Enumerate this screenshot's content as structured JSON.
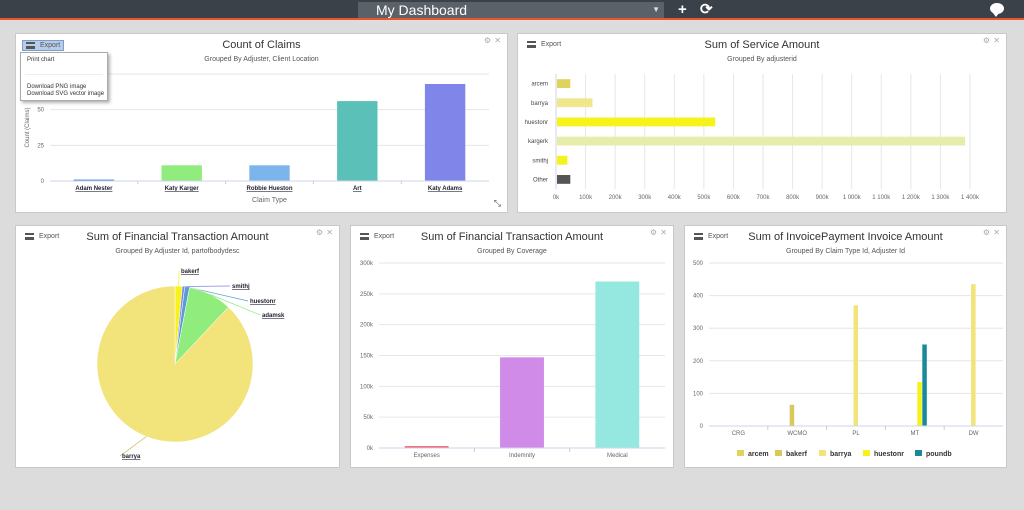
{
  "header": {
    "dashboard_title": "My Dashboard",
    "add_label": "+",
    "refresh_label": "⟳"
  },
  "export_label": "Export",
  "panel_close": "✕",
  "panel_settings": "⚙",
  "export_menu": {
    "print": "Print chart",
    "png": "Download PNG image",
    "svg": "Download SVG vector image"
  },
  "chart_data": [
    {
      "type": "bar",
      "title": "Count of Claims",
      "subtitle": "Grouped By Adjuster, Client Location",
      "xlabel": "Claim Type",
      "ylabel": "Count (Claims)",
      "categories": [
        "Adam Nester",
        "Katy Karger",
        "Robbie Hueston",
        "Art",
        "Katy Adams"
      ],
      "values": [
        1,
        11,
        11,
        56,
        68
      ],
      "colors": [
        "#4e8bd0",
        "#90ed7d",
        "#7cb5ec",
        "#5bc0b8",
        "#8085e9"
      ],
      "yticks": [
        0,
        25,
        50
      ],
      "ylim": [
        0,
        75
      ]
    },
    {
      "type": "bar",
      "orientation": "horizontal",
      "title": "Sum of Service Amount",
      "subtitle": "Grouped By adjusterid",
      "categories": [
        "arcem",
        "barrya",
        "huestonr",
        "kargerk",
        "smithj",
        "Other"
      ],
      "values": [
        45000,
        120000,
        535000,
        1380000,
        35000,
        45000
      ],
      "colors": [
        "#e0d35c",
        "#f0e68c",
        "#f6f21c",
        "#e8ecaa",
        "#f6f21c",
        "#555555"
      ],
      "xticks": [
        "0k",
        "100k",
        "200k",
        "300k",
        "400k",
        "500k",
        "600k",
        "700k",
        "800k",
        "900k",
        "1 000k",
        "1 100k",
        "1 200k",
        "1 300k",
        "1 400k"
      ],
      "xlim": [
        0,
        1400000
      ]
    },
    {
      "type": "pie",
      "title": "Sum of Financial Transaction Amount",
      "subtitle": "Grouped By Adjuster Id, partofbodydesc",
      "slices": [
        {
          "label": "barrya",
          "value": 88,
          "color": "#f2e47a"
        },
        {
          "label": "bakerf",
          "value": 1.5,
          "color": "#f6f21c"
        },
        {
          "label": "smithj",
          "value": 0.5,
          "color": "#8085e9"
        },
        {
          "label": "huestonr",
          "value": 1,
          "color": "#5b9bd5"
        },
        {
          "label": "adamsk",
          "value": 9,
          "color": "#90ed7d"
        }
      ]
    },
    {
      "type": "bar",
      "title": "Sum of Financial Transaction Amount",
      "subtitle": "Grouped By Coverage",
      "categories": [
        "Expenses",
        "Indemnity",
        "Medical"
      ],
      "values": [
        3000,
        147000,
        270000
      ],
      "colors": [
        "#f15c6a",
        "#d08ae8",
        "#94e8e0"
      ],
      "yticks": [
        "0k",
        "50k",
        "100k",
        "150k",
        "200k",
        "250k",
        "300k"
      ],
      "ylim": [
        0,
        300000
      ]
    },
    {
      "type": "bar",
      "title": "Sum of InvoicePayment Invoice Amount",
      "subtitle": "Grouped By Claim Type Id, Adjuster Id",
      "categories": [
        "CRG",
        "WCMO",
        "PL",
        "MT",
        "DW"
      ],
      "yticks": [
        0,
        100,
        200,
        300,
        400,
        500
      ],
      "ylim": [
        0,
        500
      ],
      "series": [
        {
          "name": "arcem",
          "color": "#e0d35c",
          "values": [
            0,
            0,
            0,
            0,
            0
          ]
        },
        {
          "name": "bakerf",
          "color": "#d9c85a",
          "values": [
            0,
            65,
            0,
            0,
            0
          ]
        },
        {
          "name": "barrya",
          "color": "#f2e47a",
          "values": [
            0,
            0,
            370,
            0,
            435
          ]
        },
        {
          "name": "huestonr",
          "color": "#f6f21c",
          "values": [
            0,
            0,
            0,
            135,
            0
          ]
        },
        {
          "name": "poundb",
          "color": "#1a8a9a",
          "values": [
            0,
            0,
            0,
            250,
            0
          ]
        }
      ]
    }
  ]
}
